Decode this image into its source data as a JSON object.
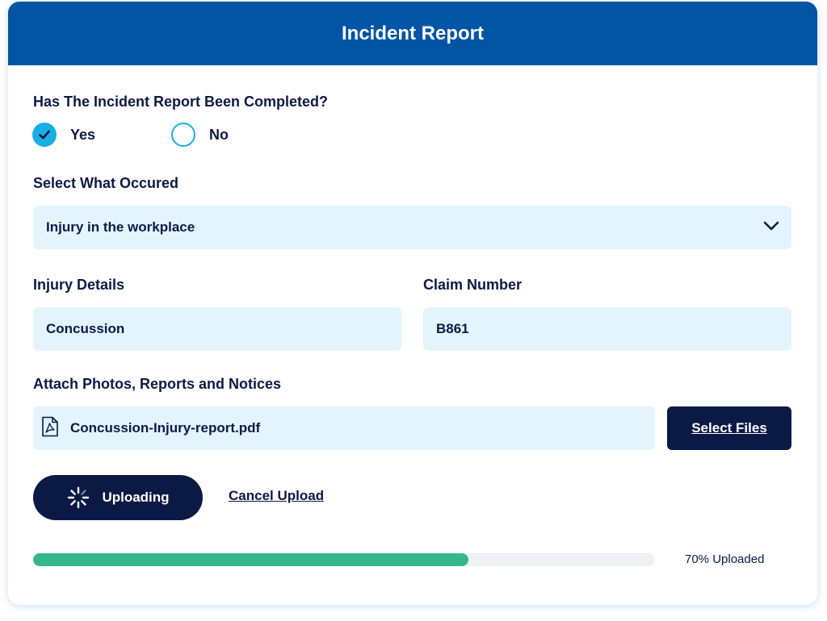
{
  "header": {
    "title": "Incident Report"
  },
  "completed_question": {
    "label": "Has The Incident Report Been Completed?",
    "options": [
      {
        "label": "Yes",
        "checked": true
      },
      {
        "label": "No",
        "checked": false
      }
    ]
  },
  "occurrence": {
    "label": "Select What Occured",
    "selected": "Injury in the workplace",
    "icon": "chevron-down-icon"
  },
  "injury_details": {
    "label": "Injury Details",
    "value": "Concussion"
  },
  "claim_number": {
    "label": "Claim Number",
    "value": "B861"
  },
  "attachments": {
    "label": "Attach Photos, Reports and Notices",
    "file_name": "Concussion-Injury-report.pdf",
    "file_icon": "pdf-file-icon",
    "select_button": "Select Files"
  },
  "upload": {
    "button_label": "Uploading",
    "spinner_icon": "spinner-icon",
    "cancel_label": "Cancel Upload",
    "progress_fraction": 0.7,
    "progress_text": "70% Uploaded"
  },
  "colors": {
    "header_bg": "#0254a4",
    "accent": "#18aee6",
    "field_bg": "#e4f4fd",
    "dark": "#0b1a45",
    "progress": "#33b987"
  }
}
